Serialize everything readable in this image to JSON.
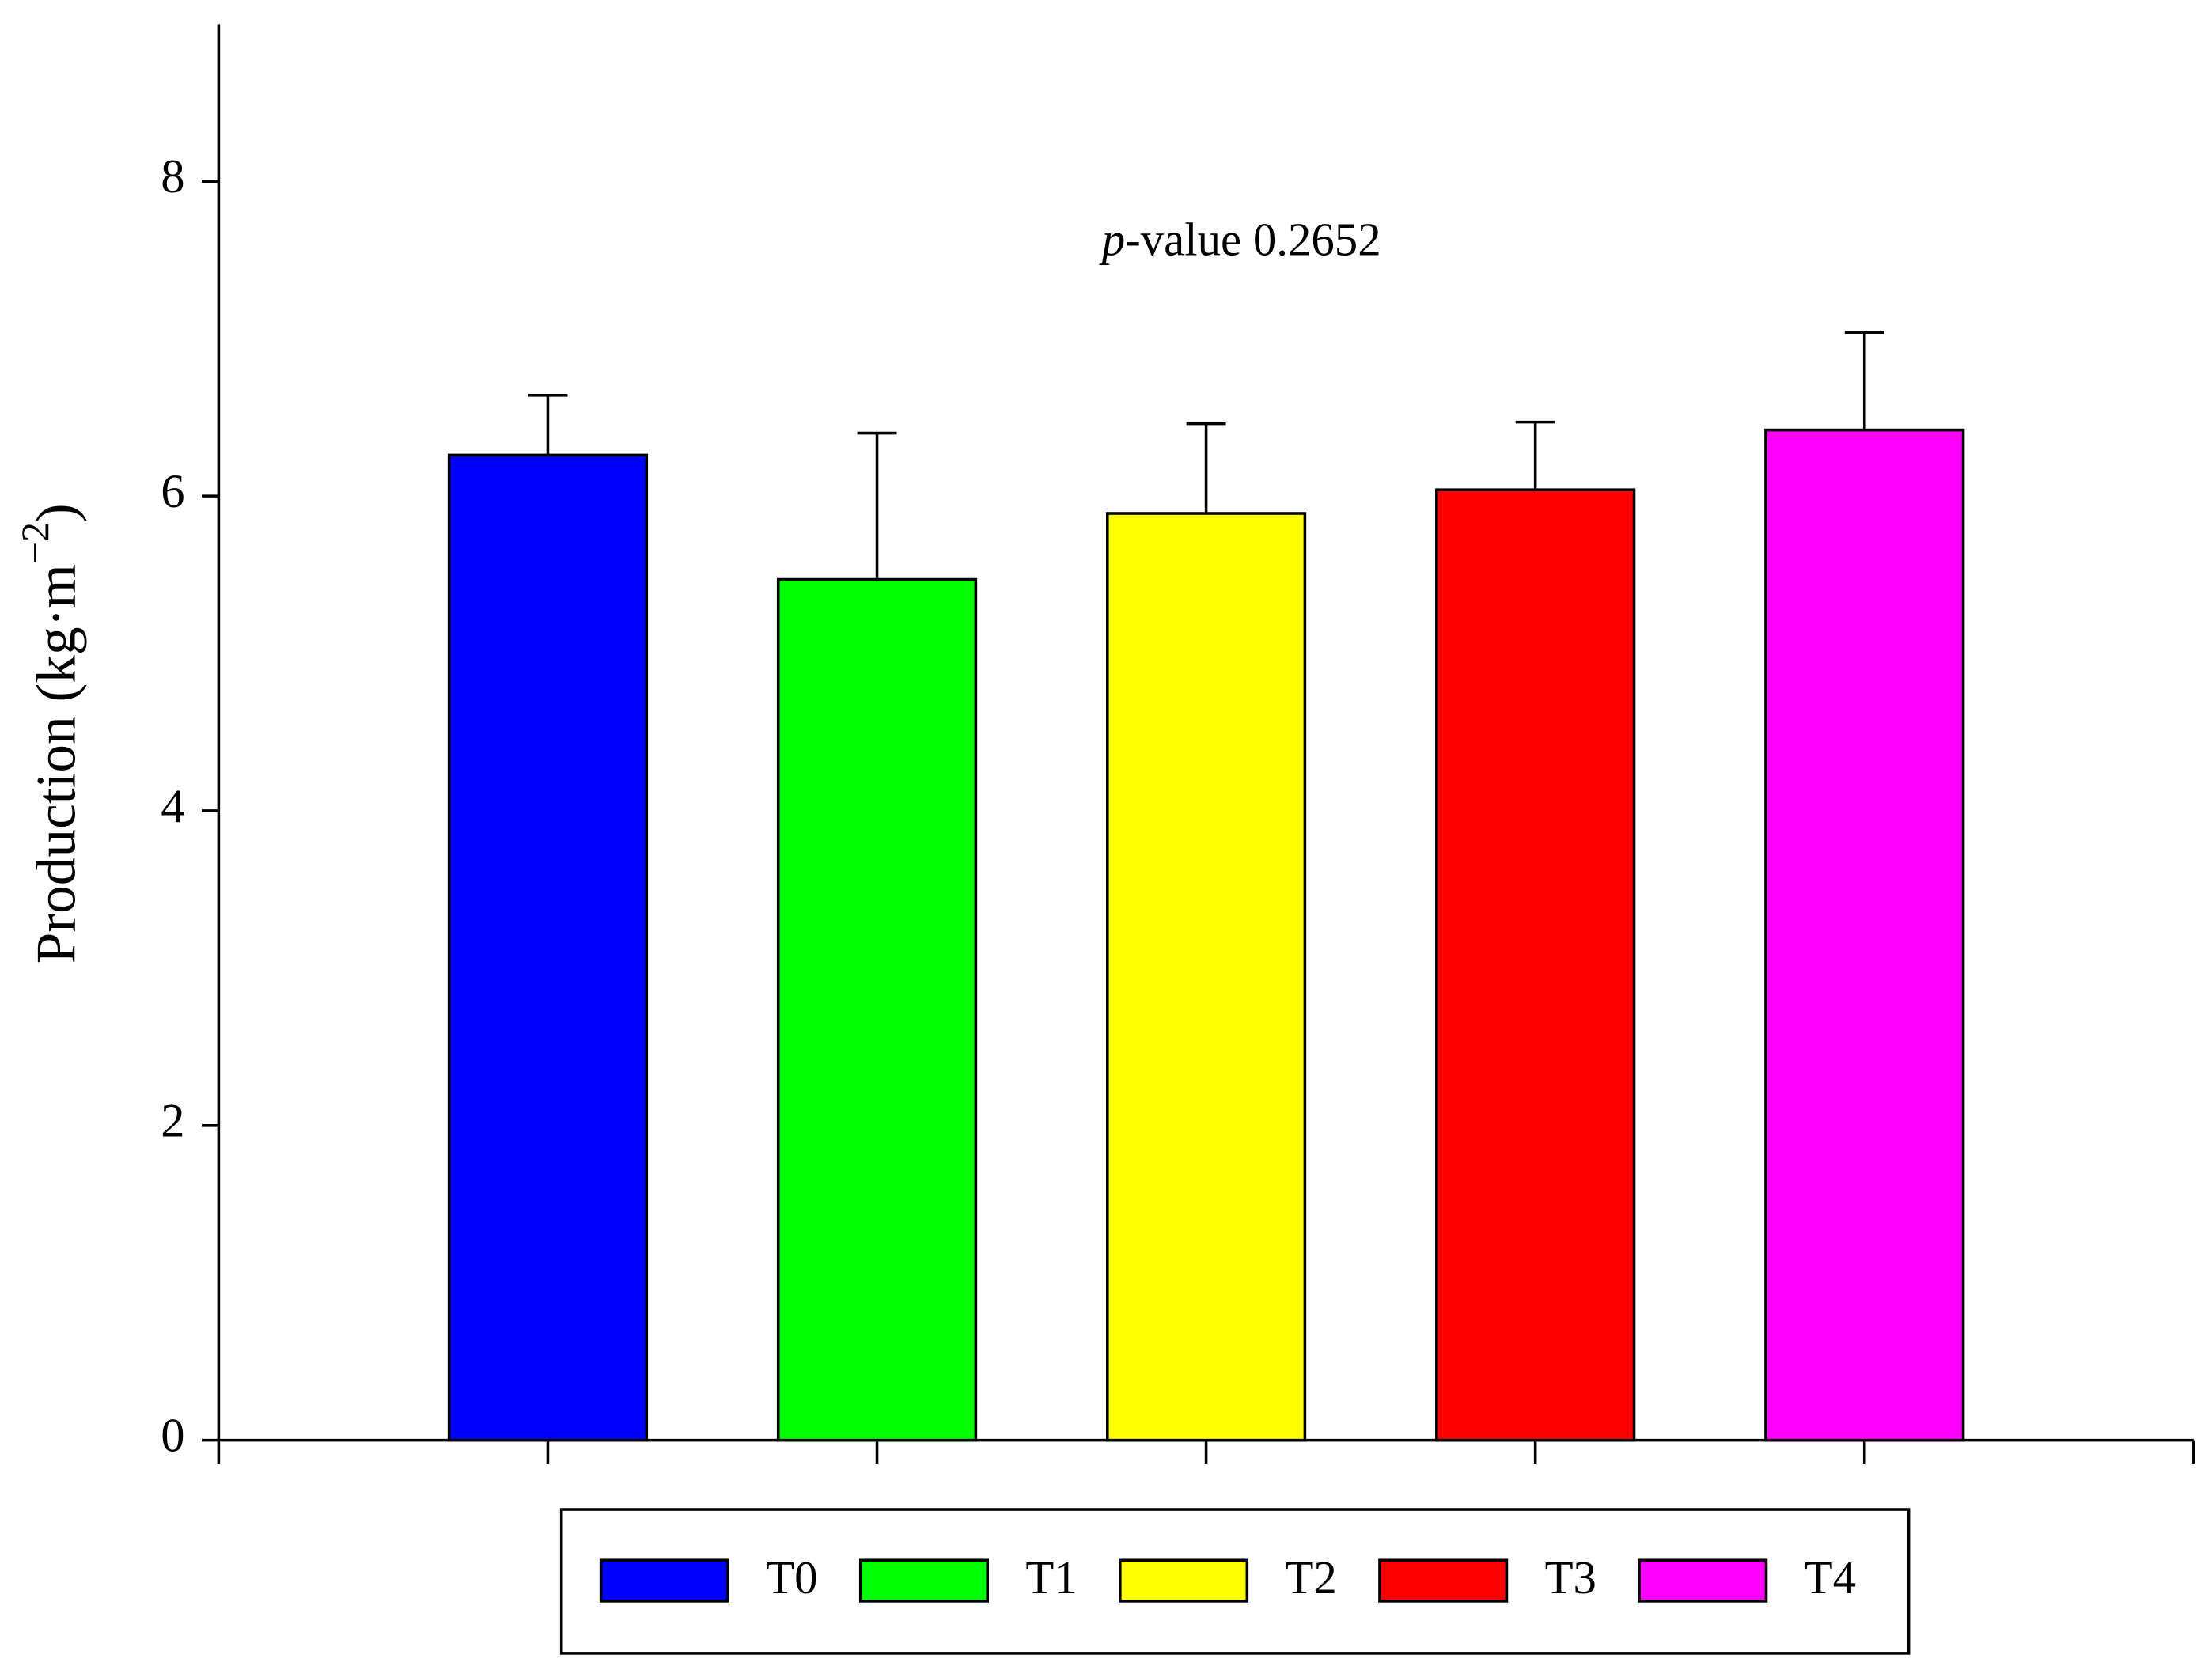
{
  "chart_data": {
    "type": "bar",
    "annotation": {
      "italic": "p",
      "text": "-value 0.2652"
    },
    "y_label": {
      "text": "Production (kg·m",
      "superscript": "−2",
      "suffix": ")"
    },
    "categories": [
      "T0",
      "T1",
      "T2",
      "T3",
      "T4"
    ],
    "values": [
      6.26,
      5.47,
      5.89,
      6.04,
      6.42
    ],
    "errors": [
      0.38,
      0.93,
      0.57,
      0.43,
      0.62
    ],
    "colors": [
      "#0000ff",
      "#00ff00",
      "#ffff00",
      "#ff0000",
      "#ff00ff"
    ],
    "ylim": [
      0,
      9
    ],
    "yticks": [
      0,
      2,
      4,
      6,
      8
    ]
  }
}
